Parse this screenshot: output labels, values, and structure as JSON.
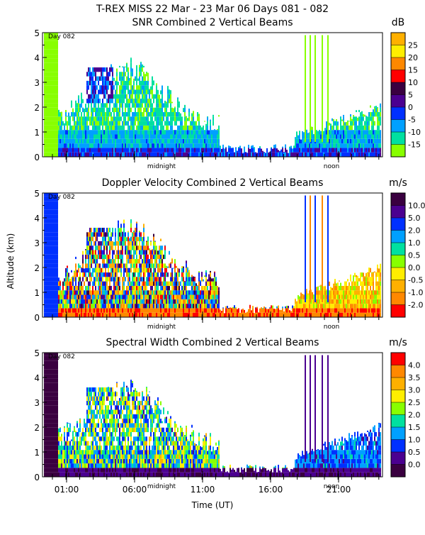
{
  "figure_title": "T-REX MISS   22 Mar - 23 Mar 06 Days 081 - 082",
  "y_axis_label": "Altitude (km)",
  "x_axis_label": "Time (UT)",
  "x_tick_labels": [
    "01:00",
    "06:00",
    "11:00",
    "16:00",
    "21:00"
  ],
  "panel_markers": [
    "midnight",
    "noon"
  ],
  "day_label": "Day 082",
  "chart_data": [
    {
      "type": "heatmap",
      "title": "SNR Combined 2 Vertical Beams",
      "unit": "dB",
      "ylim": [
        0,
        5
      ],
      "y_ticks": [
        "0",
        "1",
        "2",
        "3",
        "4",
        "5"
      ],
      "colorbar": {
        "labels": [
          "25",
          "20",
          "15",
          "10",
          "5",
          "0",
          "-5",
          "-10",
          "-15"
        ],
        "colors": [
          "#ffb000",
          "#ffee00",
          "#ff8800",
          "#ff0000",
          "#3a0040",
          "#4b0090",
          "#0030ff",
          "#00a0ff",
          "#00e0a0",
          "#88ff00"
        ]
      }
    },
    {
      "type": "heatmap",
      "title": "Doppler Velocity Combined 2 Vertical Beams",
      "unit": "m/s",
      "ylim": [
        0,
        5
      ],
      "y_ticks": [
        "0",
        "1",
        "2",
        "3",
        "4",
        "5"
      ],
      "colorbar": {
        "labels": [
          "10.0",
          "5.0",
          "2.0",
          "1.0",
          "0.5",
          "0.0",
          "-0.5",
          "-1.0",
          "-2.0"
        ],
        "colors": [
          "#3a0040",
          "#4b0090",
          "#0030ff",
          "#00a0ff",
          "#00e0a0",
          "#88ff00",
          "#ffee00",
          "#ffb000",
          "#ff8800",
          "#ff0000"
        ]
      }
    },
    {
      "type": "heatmap",
      "title": "Spectral Width Combined 2 Vertical Beams",
      "unit": "m/s",
      "ylim": [
        0,
        5
      ],
      "y_ticks": [
        "0",
        "1",
        "2",
        "3",
        "4",
        "5"
      ],
      "colorbar": {
        "labels": [
          "4.0",
          "3.5",
          "3.0",
          "2.5",
          "2.0",
          "1.5",
          "1.0",
          "0.5",
          "0.0"
        ],
        "colors": [
          "#ff0000",
          "#ff8800",
          "#ffb000",
          "#ffee00",
          "#88ff00",
          "#00e0a0",
          "#00a0ff",
          "#0030ff",
          "#4b0090",
          "#3a0040"
        ]
      }
    }
  ]
}
